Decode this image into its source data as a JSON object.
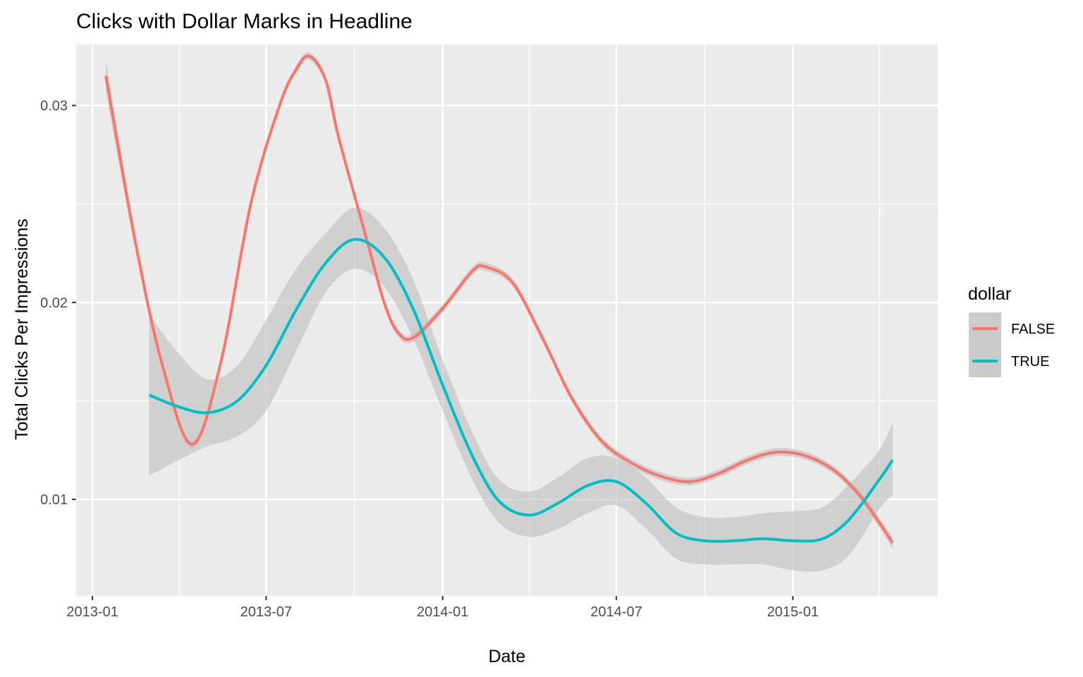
{
  "chart_data": {
    "type": "line",
    "title": "Clicks with Dollar Marks in Headline",
    "xlabel": "Date",
    "ylabel": "Total Clicks Per Impressions",
    "x_ticks": [
      "2013-01",
      "2013-07",
      "2014-01",
      "2014-07",
      "2015-01"
    ],
    "y_ticks": [
      "0.01",
      "0.02",
      "0.03"
    ],
    "xlim": [
      "2012-12-15",
      "2015-06-01"
    ],
    "ylim": [
      0.0051,
      0.0331
    ],
    "grid": true,
    "legend": {
      "title": "dollar",
      "position": "right",
      "entries": [
        "FALSE",
        "TRUE"
      ]
    },
    "series": [
      {
        "name": "FALSE",
        "color": "#F8766D",
        "x": [
          "2013-01-15",
          "2013-02-15",
          "2013-03-15",
          "2013-04-15",
          "2013-05-15",
          "2013-06-15",
          "2013-07-15",
          "2013-08-01",
          "2013-08-15",
          "2013-09-01",
          "2013-09-15",
          "2013-10-15",
          "2013-11-01",
          "2013-11-15",
          "2013-12-01",
          "2014-01-01",
          "2014-02-01",
          "2014-02-15",
          "2014-03-15",
          "2014-04-15",
          "2014-05-15",
          "2014-06-15",
          "2014-07-15",
          "2014-08-15",
          "2014-09-15",
          "2014-10-15",
          "2014-11-15",
          "2014-12-15",
          "2015-01-15",
          "2015-02-15",
          "2015-03-15",
          "2015-04-15"
        ],
        "y": [
          0.0315,
          0.023,
          0.0168,
          0.0128,
          0.017,
          0.025,
          0.03,
          0.0318,
          0.0325,
          0.0313,
          0.0283,
          0.023,
          0.02,
          0.0185,
          0.0182,
          0.0197,
          0.0216,
          0.0218,
          0.021,
          0.0182,
          0.0152,
          0.013,
          0.0119,
          0.0112,
          0.0109,
          0.0113,
          0.012,
          0.0124,
          0.0122,
          0.0114,
          0.01,
          0.0078
        ]
      },
      {
        "name": "TRUE",
        "color": "#00BFC4",
        "x": [
          "2013-03-01",
          "2013-04-01",
          "2013-05-01",
          "2013-06-01",
          "2013-07-01",
          "2013-08-01",
          "2013-09-01",
          "2013-10-01",
          "2013-11-01",
          "2013-12-01",
          "2014-01-01",
          "2014-02-01",
          "2014-03-01",
          "2014-04-01",
          "2014-05-01",
          "2014-06-01",
          "2014-07-01",
          "2014-08-01",
          "2014-09-01",
          "2014-10-01",
          "2014-11-01",
          "2014-12-01",
          "2015-01-01",
          "2015-02-01",
          "2015-03-01",
          "2015-04-01",
          "2015-04-15"
        ],
        "y": [
          0.0153,
          0.0147,
          0.0144,
          0.015,
          0.0168,
          0.0196,
          0.022,
          0.0232,
          0.0223,
          0.0197,
          0.0158,
          0.0122,
          0.0099,
          0.0092,
          0.0098,
          0.0107,
          0.0109,
          0.0098,
          0.0083,
          0.0079,
          0.0079,
          0.008,
          0.0079,
          0.008,
          0.009,
          0.011,
          0.012
        ]
      }
    ],
    "ribbons": [
      {
        "series": "FALSE",
        "color": "#BEBEBE",
        "x": [
          "2013-01-15",
          "2013-02-15",
          "2013-03-15",
          "2013-04-15",
          "2013-05-15",
          "2013-06-15",
          "2013-07-15",
          "2013-08-01",
          "2013-08-15",
          "2013-09-01",
          "2013-09-15",
          "2013-10-15",
          "2013-11-01",
          "2013-11-15",
          "2013-12-01",
          "2014-01-01",
          "2014-02-01",
          "2014-02-15",
          "2014-03-15",
          "2014-04-15",
          "2014-05-15",
          "2014-06-15",
          "2014-07-15",
          "2014-08-15",
          "2014-09-15",
          "2014-10-15",
          "2014-11-15",
          "2014-12-15",
          "2015-01-15",
          "2015-02-15",
          "2015-03-15",
          "2015-04-15"
        ],
        "lower": [
          0.0307,
          0.0226,
          0.0166,
          0.0126,
          0.0168,
          0.0248,
          0.0298,
          0.0316,
          0.0323,
          0.0311,
          0.0281,
          0.0228,
          0.0198,
          0.0183,
          0.018,
          0.0195,
          0.0214,
          0.0216,
          0.0208,
          0.018,
          0.015,
          0.0128,
          0.0117,
          0.011,
          0.0107,
          0.0111,
          0.0118,
          0.0122,
          0.012,
          0.0112,
          0.0098,
          0.0075
        ],
        "upper": [
          0.0323,
          0.0234,
          0.017,
          0.013,
          0.0172,
          0.0252,
          0.0302,
          0.032,
          0.0327,
          0.0315,
          0.0285,
          0.0232,
          0.0202,
          0.0187,
          0.0184,
          0.0199,
          0.0218,
          0.022,
          0.0212,
          0.0184,
          0.0154,
          0.0132,
          0.0121,
          0.0114,
          0.0111,
          0.0115,
          0.0122,
          0.0126,
          0.0124,
          0.0116,
          0.0102,
          0.0081
        ]
      },
      {
        "series": "TRUE",
        "color": "#BEBEBE",
        "x": [
          "2013-03-01",
          "2013-04-01",
          "2013-05-01",
          "2013-06-01",
          "2013-07-01",
          "2013-08-01",
          "2013-09-01",
          "2013-10-01",
          "2013-11-01",
          "2013-12-01",
          "2014-01-01",
          "2014-02-01",
          "2014-03-01",
          "2014-04-01",
          "2014-05-01",
          "2014-06-01",
          "2014-07-01",
          "2014-08-01",
          "2014-09-01",
          "2014-10-01",
          "2014-11-01",
          "2014-12-01",
          "2015-01-01",
          "2015-02-01",
          "2015-03-01",
          "2015-04-01",
          "2015-04-15"
        ],
        "lower": [
          0.0112,
          0.012,
          0.0127,
          0.0132,
          0.0145,
          0.0175,
          0.0205,
          0.0217,
          0.0208,
          0.0182,
          0.0145,
          0.011,
          0.0088,
          0.0081,
          0.0085,
          0.0093,
          0.0097,
          0.0085,
          0.007,
          0.0067,
          0.0067,
          0.0067,
          0.0064,
          0.0064,
          0.0072,
          0.0095,
          0.0102
        ],
        "upper": [
          0.0194,
          0.0174,
          0.0161,
          0.0168,
          0.0191,
          0.0217,
          0.0235,
          0.0248,
          0.0238,
          0.0212,
          0.0171,
          0.0134,
          0.011,
          0.0104,
          0.0111,
          0.0121,
          0.0121,
          0.0111,
          0.0096,
          0.0091,
          0.0091,
          0.0093,
          0.0094,
          0.0096,
          0.0108,
          0.0125,
          0.0139
        ]
      }
    ]
  }
}
